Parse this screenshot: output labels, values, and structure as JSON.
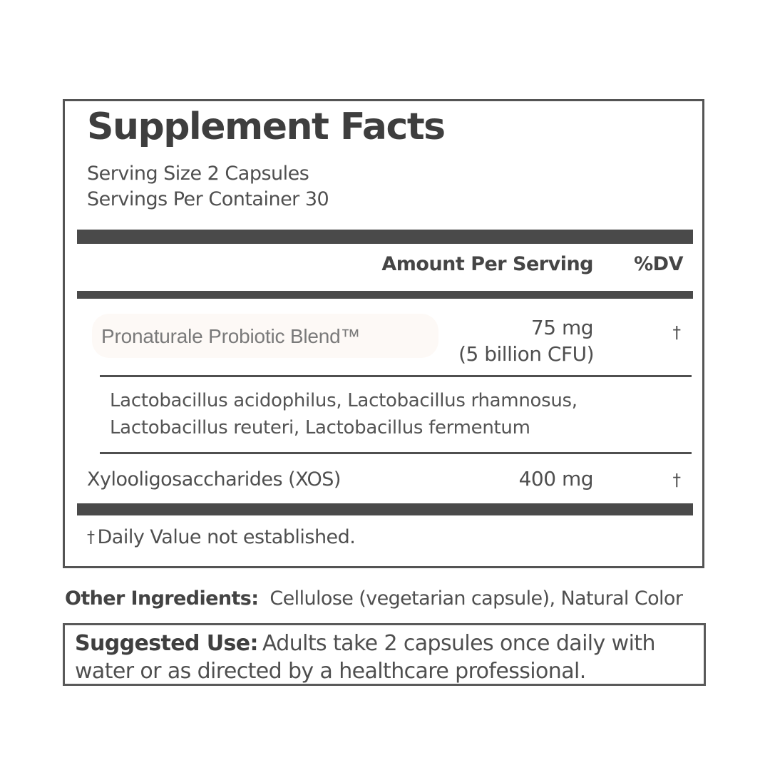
{
  "facts": {
    "title": "Supplement Facts",
    "serving_size": "Serving Size 2 Capsules",
    "servings_per_container": "Servings Per Container 30",
    "header": {
      "amount": "Amount Per Serving",
      "dv": "%DV"
    },
    "rows": [
      {
        "name": "Pronaturale Probiotic Blend™",
        "amount": "75 mg",
        "amount_detail": "(5 billion CFU)",
        "dv": "†"
      },
      {
        "type": "sub-ingredients",
        "lines": [
          "Lactobacillus acidophilus, Lactobacillus rhamnosus,",
          "Lactobacillus reuteri, Lactobacillus fermentum"
        ]
      },
      {
        "name": "Xylooligosaccharides (XOS)",
        "amount": "400 mg",
        "dv": "†"
      }
    ],
    "footnote_symbol": "†",
    "footnote_text": "Daily Value not established."
  },
  "other_ingredients": {
    "label": "Other Ingredients:",
    "text": "Cellulose (vegetarian capsule), Natural Color"
  },
  "suggested_use": {
    "label": "Suggested Use:",
    "text": "Adults take 2 capsules once daily with water or as directed by a healthcare professional."
  },
  "colors": {
    "background": "#ffffff",
    "title_text": "#3e3e3e",
    "body_text": "#4f4f4f",
    "blend_text": "#7a7a7a",
    "bar": "#4a4a4a",
    "border": "#545454"
  }
}
